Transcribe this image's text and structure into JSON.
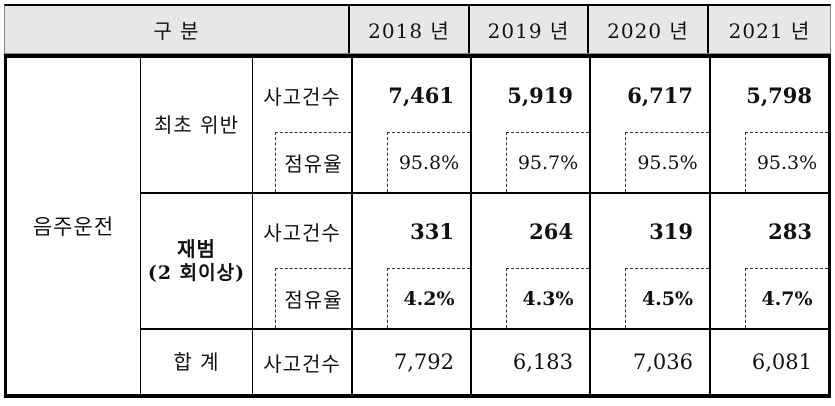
{
  "header": {
    "category_label": "구 분",
    "year_columns": [
      "2018 년",
      "2019 년",
      "2020 년",
      "2021 년"
    ]
  },
  "body": {
    "subject_label": "음주운전",
    "sections": [
      {
        "group_label": "최초 위반",
        "group_sublabel": "",
        "accidents": {
          "label": "사고건수",
          "values": [
            "7,461",
            "5,919",
            "6,717",
            "5,798"
          ]
        },
        "share": {
          "label": "점유율",
          "values": [
            "95.8%",
            "95.7%",
            "95.5%",
            "95.3%"
          ]
        }
      },
      {
        "group_label": "재범",
        "group_sublabel": "(2 회이상)",
        "accidents": {
          "label": "사고건수",
          "values": [
            "331",
            "264",
            "319",
            "283"
          ]
        },
        "share": {
          "label": "점유율",
          "values": [
            "4.2%",
            "4.3%",
            "4.5%",
            "4.7%"
          ]
        }
      }
    ],
    "total": {
      "group_label": "합 계",
      "metric_label": "사고건수",
      "values": [
        "7,792",
        "6,183",
        "7,036",
        "6,081"
      ]
    }
  },
  "colors": {
    "header_bg": "#e7e7e7",
    "border": "#000000",
    "dashed_border": "#333333",
    "text": "#111111"
  }
}
